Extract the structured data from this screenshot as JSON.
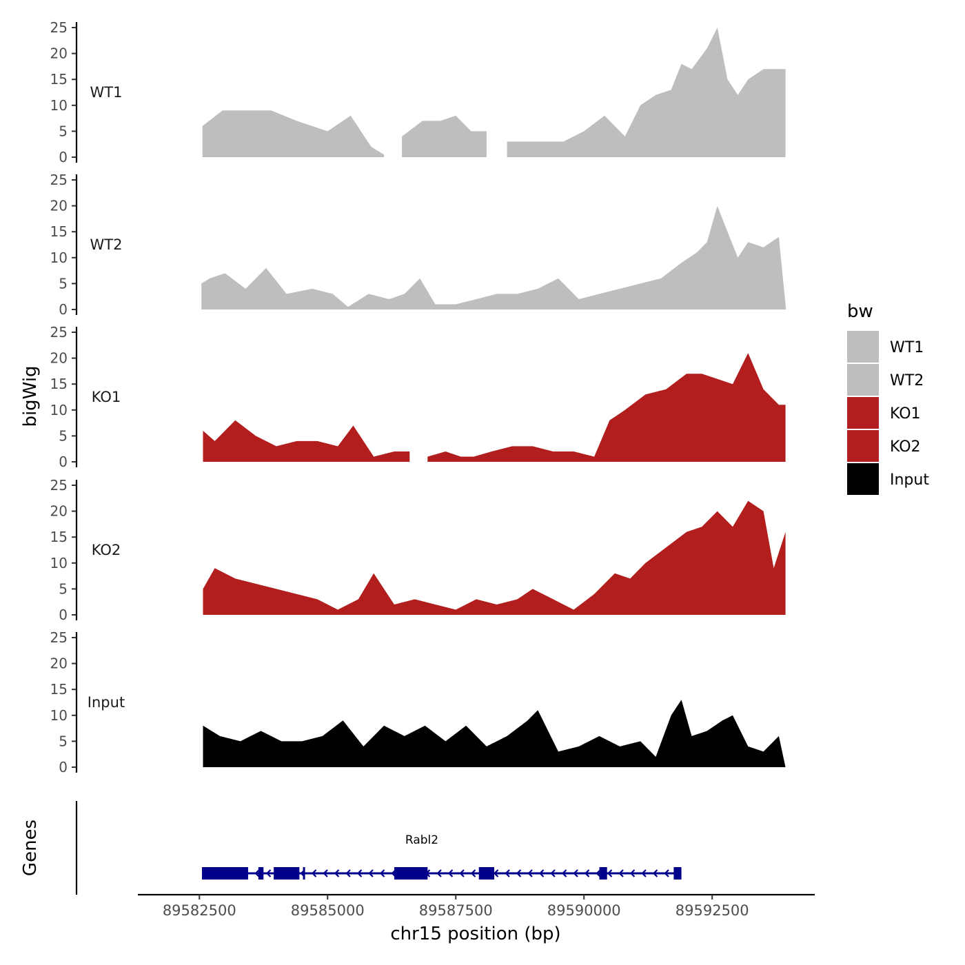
{
  "chart_data": {
    "type": "area",
    "title": "",
    "ylabel": "bigWig",
    "genes_label": "Genes",
    "xlabel": "chr15 position (bp)",
    "xlim": [
      89581300,
      89594500
    ],
    "ylim": [
      0,
      25
    ],
    "x_ticks": [
      "89582500",
      "89585000",
      "89587500",
      "89590000",
      "89592500"
    ],
    "y_ticks": [
      "0",
      "5",
      "10",
      "15",
      "20",
      "25"
    ],
    "legend": {
      "title": "bw",
      "position": "right",
      "entries": [
        {
          "label": "WT1",
          "color": "#BEBEBE"
        },
        {
          "label": "WT2",
          "color": "#BEBEBE"
        },
        {
          "label": "KO1",
          "color": "#B21E1E"
        },
        {
          "label": "KO2",
          "color": "#B21E1E"
        },
        {
          "label": "Input",
          "color": "#000000"
        }
      ]
    },
    "series": [
      {
        "name": "WT1",
        "color": "#BEBEBE",
        "x": [
          89582560,
          89582950,
          89583400,
          89583900,
          89584400,
          89585000,
          89585450,
          89585850,
          89586100,
          89586250,
          89586450,
          89586850,
          89587200,
          89587500,
          89587800,
          89588100,
          89588300,
          89588500,
          89588800,
          89589200,
          89589600,
          89590000,
          89590400,
          89590800,
          89591100,
          89591400,
          89591700,
          89591900,
          89592100,
          89592400,
          89592600,
          89592800,
          89593000,
          89593200,
          89593500,
          89593800,
          89593930
        ],
        "values": [
          6,
          9,
          9,
          9,
          7,
          5,
          8,
          2,
          0.5,
          null,
          4,
          7,
          7,
          8,
          5,
          5,
          null,
          3,
          3,
          3,
          3,
          5,
          8,
          4,
          10,
          12,
          13,
          18,
          17,
          21,
          25,
          15,
          12,
          15,
          17,
          17,
          17
        ]
      },
      {
        "name": "WT2",
        "color": "#BEBEBE",
        "x": [
          89582540,
          89582700,
          89583000,
          89583400,
          89583800,
          89584200,
          89584700,
          89585100,
          89585400,
          89585800,
          89586200,
          89586500,
          89586800,
          89587100,
          89587500,
          89587900,
          89588300,
          89588700,
          89589100,
          89589500,
          89589900,
          89590300,
          89590700,
          89591100,
          89591500,
          89591900,
          89592200,
          89592400,
          89592600,
          89592800,
          89593000,
          89593200,
          89593500,
          89593800,
          89593940
        ],
        "values": [
          5,
          6,
          7,
          4,
          8,
          3,
          4,
          3,
          0.5,
          3,
          2,
          3,
          6,
          1,
          1,
          2,
          3,
          3,
          4,
          6,
          2,
          3,
          4,
          5,
          6,
          9,
          11,
          13,
          20,
          15,
          10,
          13,
          12,
          14,
          0
        ]
      },
      {
        "name": "KO1",
        "color": "#B21E1E",
        "x": [
          89582570,
          89582800,
          89583200,
          89583600,
          89584000,
          89584400,
          89584800,
          89585200,
          89585500,
          89585900,
          89586300,
          89586600,
          89586750,
          89586950,
          89587300,
          89587600,
          89587850,
          89588200,
          89588600,
          89589000,
          89589400,
          89589800,
          89590200,
          89590500,
          89590800,
          89591200,
          89591600,
          89592000,
          89592300,
          89592600,
          89592900,
          89593200,
          89593500,
          89593800,
          89593930
        ],
        "values": [
          6,
          4,
          8,
          5,
          3,
          4,
          4,
          3,
          7,
          1,
          2,
          2,
          null,
          1,
          2,
          1,
          1,
          2,
          3,
          3,
          2,
          2,
          1,
          8,
          10,
          13,
          14,
          17,
          17,
          16,
          15,
          21,
          14,
          11,
          11
        ]
      },
      {
        "name": "KO2",
        "color": "#B21E1E",
        "x": [
          89582570,
          89582800,
          89583200,
          89583600,
          89584000,
          89584400,
          89584800,
          89585200,
          89585600,
          89585900,
          89586300,
          89586700,
          89587100,
          89587500,
          89587900,
          89588300,
          89588700,
          89589000,
          89589400,
          89589800,
          89590200,
          89590600,
          89590900,
          89591200,
          89591600,
          89592000,
          89592300,
          89592600,
          89592900,
          89593200,
          89593500,
          89593700,
          89593930
        ],
        "values": [
          5,
          9,
          7,
          6,
          5,
          4,
          3,
          1,
          3,
          8,
          2,
          3,
          2,
          1,
          3,
          2,
          3,
          5,
          3,
          1,
          4,
          8,
          7,
          10,
          13,
          16,
          17,
          20,
          17,
          22,
          20,
          9,
          16
        ]
      },
      {
        "name": "Input",
        "color": "#000000",
        "x": [
          89582570,
          89582900,
          89583300,
          89583700,
          89584100,
          89584500,
          89584900,
          89585300,
          89585700,
          89586100,
          89586500,
          89586900,
          89587300,
          89587700,
          89588100,
          89588500,
          89588900,
          89589100,
          89589500,
          89589900,
          89590300,
          89590700,
          89591100,
          89591400,
          89591700,
          89591900,
          89592100,
          89592400,
          89592700,
          89592900,
          89593200,
          89593500,
          89593800,
          89593930
        ],
        "values": [
          8,
          6,
          5,
          7,
          5,
          5,
          6,
          9,
          4,
          8,
          6,
          8,
          5,
          8,
          4,
          6,
          9,
          11,
          3,
          4,
          6,
          4,
          5,
          2,
          10,
          13,
          6,
          7,
          9,
          10,
          4,
          3,
          6,
          0
        ]
      }
    ],
    "gene": {
      "name": "Rabl2",
      "start": 89582550,
      "end": 89591900,
      "strand": "-",
      "exons": [
        [
          89582550,
          89583450
        ],
        [
          89583650,
          89583750
        ],
        [
          89583950,
          89584450
        ],
        [
          89584520,
          89584550
        ],
        [
          89586300,
          89586950
        ],
        [
          89587950,
          89588250
        ],
        [
          89590300,
          89590450
        ],
        [
          89591750,
          89591900
        ]
      ]
    }
  }
}
